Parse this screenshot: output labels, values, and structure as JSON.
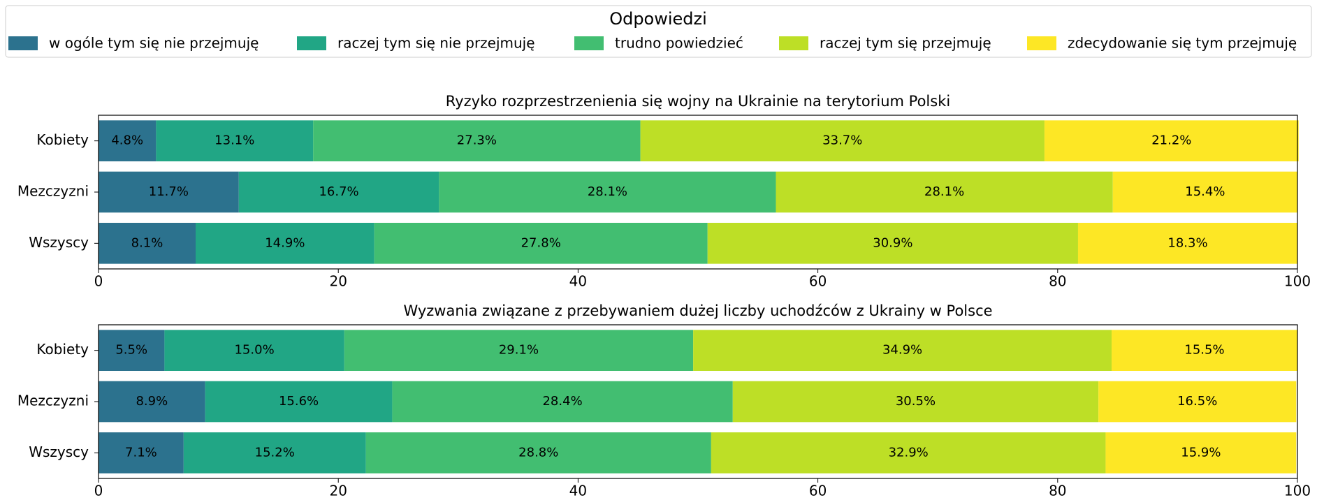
{
  "chart_data": [
    {
      "type": "stacked_barh",
      "title": "Ryzyko rozprzestrzenienia się wojny na Ukrainie na terytorium Polski",
      "legend_title": "Odpowiedzi",
      "legend": "upper center",
      "categories": [
        "Kobiety",
        "Mezczyzni",
        "Wszyscy"
      ],
      "xlim": [
        0,
        100
      ],
      "xticks": [
        0,
        20,
        40,
        60,
        80,
        100
      ],
      "series": [
        {
          "name": "w ogóle tym się nie przejmuję",
          "color": "#2c728e",
          "values": [
            4.8,
            11.7,
            8.1
          ],
          "value_labels": [
            "4.8%",
            "11.7%",
            "8.1%"
          ]
        },
        {
          "name": "raczej tym się nie przejmuję",
          "color": "#21a685",
          "values": [
            13.1,
            16.7,
            14.9
          ],
          "value_labels": [
            "13.1%",
            "16.7%",
            "14.9%"
          ]
        },
        {
          "name": "trudno powiedzieć",
          "color": "#42be71",
          "values": [
            27.3,
            28.1,
            27.8
          ],
          "value_labels": [
            "27.3%",
            "28.1%",
            "27.8%"
          ]
        },
        {
          "name": "raczej tym się przejmuję",
          "color": "#bddf26",
          "values": [
            33.7,
            28.1,
            30.9
          ],
          "value_labels": [
            "33.7%",
            "28.1%",
            "30.9%"
          ]
        },
        {
          "name": "zdecydowanie się tym przejmuję",
          "color": "#fde725",
          "values": [
            21.2,
            15.4,
            18.3
          ],
          "value_labels": [
            "21.2%",
            "15.4%",
            "18.3%"
          ]
        }
      ]
    },
    {
      "type": "stacked_barh",
      "title": "Wyzwania związane z przebywaniem dużej liczby uchodźców z Ukrainy w Polsce",
      "categories": [
        "Kobiety",
        "Mezczyzni",
        "Wszyscy"
      ],
      "xlim": [
        0,
        100
      ],
      "xticks": [
        0,
        20,
        40,
        60,
        80,
        100
      ],
      "series": [
        {
          "color": "#2c728e",
          "values": [
            5.5,
            8.9,
            7.1
          ],
          "value_labels": [
            "5.5%",
            "8.9%",
            "7.1%"
          ]
        },
        {
          "color": "#21a685",
          "values": [
            15.0,
            15.6,
            15.2
          ],
          "value_labels": [
            "15.0%",
            "15.6%",
            "15.2%"
          ]
        },
        {
          "color": "#42be71",
          "values": [
            29.1,
            28.4,
            28.8
          ],
          "value_labels": [
            "29.1%",
            "28.4%",
            "28.8%"
          ]
        },
        {
          "color": "#bddf26",
          "values": [
            34.9,
            30.5,
            32.9
          ],
          "value_labels": [
            "34.9%",
            "30.5%",
            "32.9%"
          ]
        },
        {
          "color": "#fde725",
          "values": [
            15.5,
            16.5,
            15.9
          ],
          "value_labels": [
            "15.5%",
            "16.5%",
            "15.9%"
          ]
        }
      ]
    }
  ]
}
